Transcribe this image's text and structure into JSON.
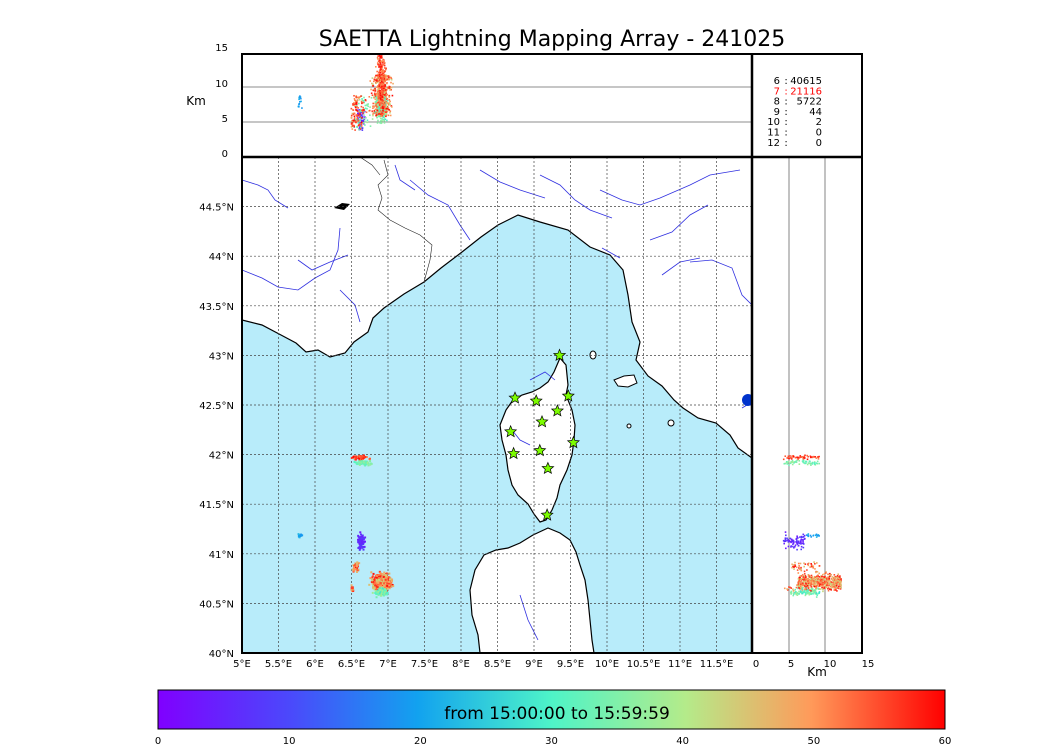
{
  "title": "SAETTA Lightning Mapping Array - 241025",
  "altitude_panel": {
    "ylabel": "Km",
    "yticks": [
      "0",
      "5",
      "10",
      "15"
    ]
  },
  "side_panel": {
    "xlabel": "Km",
    "xticks": [
      "0",
      "5",
      "10",
      "15"
    ]
  },
  "station_counts": [
    {
      "stations": "6",
      "count": "40615",
      "color": "#000000"
    },
    {
      "stations": "7",
      "count": "21116",
      "color": "#ff0000"
    },
    {
      "stations": "8",
      "count": "5722",
      "color": "#000000"
    },
    {
      "stations": "9",
      "count": "44",
      "color": "#000000"
    },
    {
      "stations": "10",
      "count": "2",
      "color": "#000000"
    },
    {
      "stations": "11",
      "count": "0",
      "color": "#000000"
    },
    {
      "stations": "12",
      "count": "0",
      "color": "#000000"
    }
  ],
  "map": {
    "lon_ticks": [
      "5°E",
      "5.5°E",
      "6°E",
      "6.5°E",
      "7°E",
      "7.5°E",
      "8°E",
      "8.5°E",
      "9°E",
      "9.5°E",
      "10°E",
      "10.5°E",
      "11°E",
      "11.5°E"
    ],
    "lat_ticks": [
      "40°N",
      "40.5°N",
      "41°N",
      "41.5°N",
      "42°N",
      "42.5°N",
      "43°N",
      "43.5°N",
      "44°N",
      "44.5°N"
    ],
    "sea_color": "#b8ecfa",
    "land_color": "#ffffff",
    "river_color": "#3030e0",
    "stations": [
      {
        "lon": 9.35,
        "lat": 43.0
      },
      {
        "lon": 8.74,
        "lat": 42.57
      },
      {
        "lon": 9.03,
        "lat": 42.54
      },
      {
        "lon": 9.47,
        "lat": 42.59
      },
      {
        "lon": 9.11,
        "lat": 42.33
      },
      {
        "lon": 9.32,
        "lat": 42.44
      },
      {
        "lon": 8.68,
        "lat": 42.23
      },
      {
        "lon": 9.54,
        "lat": 42.12
      },
      {
        "lon": 8.72,
        "lat": 42.01
      },
      {
        "lon": 9.08,
        "lat": 42.04
      },
      {
        "lon": 9.19,
        "lat": 41.86
      },
      {
        "lon": 9.18,
        "lat": 41.39
      }
    ],
    "station_color": "#7cfc00"
  },
  "colorbar": {
    "label": "from 15:00:00 to 15:59:59",
    "ticks": [
      "0",
      "10",
      "20",
      "30",
      "40",
      "50",
      "60"
    ],
    "min": 0,
    "max": 60
  }
}
